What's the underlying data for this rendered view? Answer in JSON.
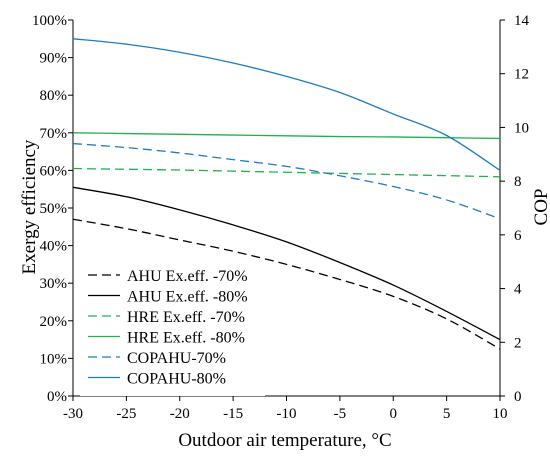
{
  "chart_data": {
    "type": "line",
    "xlabel": "Outdoor air temperature, °C",
    "ylabel": "Exergy efficiency",
    "y2label": "COP",
    "xlim": [
      -30,
      10
    ],
    "ylim": [
      0,
      100
    ],
    "y2lim": [
      0,
      14
    ],
    "x_ticks": [
      "-30",
      "-25",
      "-20",
      "-15",
      "-10",
      "-5",
      "0",
      "5",
      "10"
    ],
    "y_ticks": [
      "0%",
      "10%",
      "20%",
      "30%",
      "40%",
      "50%",
      "60%",
      "70%",
      "80%",
      "90%",
      "100%"
    ],
    "y2_ticks": [
      "0",
      "2",
      "4",
      "6",
      "8",
      "10",
      "12",
      "14"
    ],
    "grid": false,
    "legend_position": "bottom-left",
    "x": [
      -30,
      -25,
      -20,
      -15,
      -10,
      -5,
      0,
      5,
      10
    ],
    "series": [
      {
        "name": "AHU Ex.eff. -70%",
        "axis": "left",
        "color": "#000000",
        "dash": "dashed",
        "values": [
          47,
          44.5,
          41.5,
          38.5,
          35,
          31,
          26.5,
          20.5,
          12.5
        ]
      },
      {
        "name": "AHU Ex.eff. -80%",
        "axis": "left",
        "color": "#000000",
        "dash": "solid",
        "values": [
          55.5,
          53,
          49.5,
          45.5,
          41,
          35.5,
          29.5,
          22.5,
          15
        ]
      },
      {
        "name": "HRE Ex.eff. -70%",
        "axis": "left",
        "color": "#22b04b",
        "dash": "dashed",
        "values": [
          60.5,
          60.3,
          60.1,
          59.8,
          59.5,
          59.2,
          58.9,
          58.6,
          58.3
        ]
      },
      {
        "name": "HRE Ex.eff. -80%",
        "axis": "left",
        "color": "#22b04b",
        "dash": "solid",
        "values": [
          70,
          69.8,
          69.6,
          69.4,
          69.2,
          69.0,
          68.9,
          68.7,
          68.5
        ]
      },
      {
        "name": "COPAHU-70%",
        "axis": "right",
        "color": "#1f7bc4",
        "dash": "dashed",
        "values": [
          9.4,
          9.25,
          9.05,
          8.8,
          8.55,
          8.2,
          7.8,
          7.3,
          6.6
        ]
      },
      {
        "name": "COPAHU-80%",
        "axis": "right",
        "color": "#1f7bc4",
        "dash": "solid",
        "values": [
          13.3,
          13.1,
          12.8,
          12.4,
          11.9,
          11.3,
          10.5,
          9.7,
          8.4
        ]
      }
    ]
  }
}
